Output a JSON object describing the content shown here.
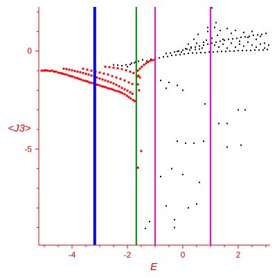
{
  "chart_data": {
    "type": "scatter",
    "title": "",
    "xlabel": "E",
    "ylabel": "<J3>",
    "xlim": [
      -5.2,
      3.15
    ],
    "ylim": [
      -9.9,
      2.25
    ],
    "x_ticks": [
      -4,
      -2,
      0,
      2
    ],
    "y_ticks": [
      0,
      -5
    ],
    "x_tick_labels": [
      "-4",
      "-2",
      "0",
      "2"
    ],
    "y_tick_labels": [
      "0",
      "-5"
    ],
    "grid": false,
    "colors": {
      "axis": "#e60000",
      "scatter_red": "#ff0000",
      "scatter_black": "#000000",
      "line_blue": "#0000ff",
      "line_green": "#008000",
      "line_magenta": "#ff00ff"
    },
    "vertical_lines": [
      {
        "x": -3.18,
        "color": "#0000ff",
        "width": 4
      },
      {
        "x": -1.68,
        "color": "#008000",
        "width": 2
      },
      {
        "x": -1.0,
        "color": "#ff00ff",
        "width": 2
      },
      {
        "x": 1.0,
        "color": "#ff00ff",
        "width": 2
      }
    ],
    "series": [
      {
        "color": "#ff0000",
        "points": [
          [
            -5.1,
            -1.0
          ],
          [
            -5.02,
            -1.0
          ],
          [
            -4.95,
            -0.98
          ],
          [
            -4.88,
            -1.0
          ],
          [
            -4.8,
            -1.02
          ],
          [
            -4.72,
            -1.0
          ],
          [
            -4.65,
            -1.05
          ],
          [
            -4.58,
            -1.05
          ],
          [
            -4.5,
            -1.1
          ],
          [
            -4.42,
            -1.12
          ],
          [
            -4.35,
            -1.15
          ],
          [
            -4.28,
            -1.18
          ],
          [
            -4.2,
            -1.2
          ],
          [
            -4.12,
            -1.25
          ],
          [
            -4.05,
            -1.28
          ],
          [
            -3.98,
            -1.3
          ],
          [
            -3.9,
            -1.35
          ],
          [
            -3.82,
            -1.38
          ],
          [
            -3.75,
            -1.42
          ],
          [
            -3.68,
            -1.45
          ],
          [
            -3.6,
            -1.5
          ],
          [
            -3.52,
            -1.52
          ],
          [
            -3.45,
            -1.55
          ],
          [
            -3.38,
            -1.6
          ],
          [
            -3.3,
            -1.62
          ],
          [
            -3.22,
            -1.65
          ],
          [
            -3.15,
            -1.7
          ],
          [
            -3.08,
            -1.72
          ],
          [
            -3.0,
            -1.75
          ],
          [
            -2.92,
            -1.8
          ],
          [
            -2.85,
            -1.82
          ],
          [
            -2.78,
            -1.85
          ],
          [
            -2.7,
            -1.9
          ],
          [
            -2.62,
            -1.92
          ],
          [
            -2.55,
            -1.95
          ],
          [
            -2.48,
            -2.0
          ],
          [
            -2.4,
            -2.03
          ],
          [
            -2.32,
            -2.06
          ],
          [
            -2.25,
            -2.1
          ],
          [
            -2.18,
            -2.15
          ],
          [
            -2.1,
            -2.2
          ],
          [
            -2.02,
            -2.28
          ],
          [
            -1.95,
            -2.35
          ],
          [
            -1.88,
            -2.42
          ],
          [
            -1.8,
            -2.5
          ],
          [
            -1.74,
            -2.55
          ],
          [
            -4.3,
            -0.9
          ],
          [
            -4.2,
            -0.92
          ],
          [
            -4.1,
            -0.95
          ],
          [
            -4.0,
            -0.98
          ],
          [
            -3.9,
            -1.02
          ],
          [
            -3.8,
            -1.05
          ],
          [
            -3.7,
            -1.08
          ],
          [
            -3.6,
            -1.12
          ],
          [
            -3.5,
            -1.16
          ],
          [
            -3.4,
            -1.2
          ],
          [
            -3.3,
            -1.25
          ],
          [
            -3.2,
            -1.3
          ],
          [
            -3.1,
            -1.35
          ],
          [
            -3.0,
            -1.4
          ],
          [
            -2.9,
            -1.45
          ],
          [
            -2.8,
            -1.5
          ],
          [
            -2.7,
            -1.55
          ],
          [
            -2.6,
            -1.6
          ],
          [
            -2.5,
            -1.66
          ],
          [
            -2.4,
            -1.72
          ],
          [
            -2.3,
            -1.8
          ],
          [
            -2.2,
            -1.88
          ],
          [
            -2.1,
            -1.95
          ],
          [
            -2.0,
            -2.02
          ],
          [
            -1.9,
            -2.1
          ],
          [
            -1.82,
            -2.18
          ],
          [
            -3.6,
            -0.9
          ],
          [
            -3.45,
            -0.95
          ],
          [
            -3.3,
            -1.0
          ],
          [
            -3.15,
            -1.05
          ],
          [
            -3.0,
            -1.1
          ],
          [
            -2.85,
            -1.15
          ],
          [
            -2.7,
            -1.2
          ],
          [
            -2.55,
            -1.28
          ],
          [
            -2.4,
            -1.35
          ],
          [
            -2.25,
            -1.42
          ],
          [
            -2.1,
            -1.5
          ],
          [
            -1.95,
            -1.6
          ],
          [
            -1.82,
            -1.68
          ],
          [
            -2.8,
            -0.8
          ],
          [
            -2.65,
            -0.82
          ],
          [
            -2.5,
            -0.85
          ],
          [
            -2.35,
            -0.88
          ],
          [
            -2.2,
            -0.92
          ],
          [
            -2.05,
            -0.98
          ],
          [
            -1.9,
            -1.05
          ],
          [
            -1.78,
            -1.12
          ],
          [
            -1.62,
            -1.0
          ],
          [
            -1.55,
            -0.9
          ],
          [
            -1.48,
            -0.8
          ],
          [
            -1.4,
            -0.7
          ],
          [
            -1.32,
            -0.62
          ],
          [
            -1.25,
            -0.56
          ],
          [
            -1.18,
            -0.5
          ],
          [
            -1.1,
            -0.47
          ],
          [
            -1.02,
            -0.44
          ],
          [
            -1.65,
            -1.3
          ],
          [
            -1.6,
            -1.25
          ],
          [
            -1.55,
            -1.35
          ],
          [
            -1.62,
            -1.7
          ],
          [
            -1.58,
            -2.0
          ],
          [
            -1.5,
            -5.1
          ],
          [
            -1.62,
            -5.95
          ]
        ]
      },
      {
        "color": "#000000",
        "points": [
          [
            -2.5,
            -0.7
          ],
          [
            -2.35,
            -0.72
          ],
          [
            -2.2,
            -0.75
          ],
          [
            -2.05,
            -0.7
          ],
          [
            -1.9,
            -0.68
          ],
          [
            -1.75,
            -0.6
          ],
          [
            -1.6,
            -0.52
          ],
          [
            -1.45,
            -0.45
          ],
          [
            -1.3,
            -0.5
          ],
          [
            -1.15,
            -0.42
          ],
          [
            -1.0,
            -0.38
          ],
          [
            -0.85,
            -0.35
          ],
          [
            -0.7,
            -0.3
          ],
          [
            -0.55,
            -0.28
          ],
          [
            -0.4,
            -0.22
          ],
          [
            -0.25,
            -0.2
          ],
          [
            -0.1,
            -0.18
          ],
          [
            0.05,
            -0.15
          ],
          [
            0.2,
            -0.12
          ],
          [
            0.35,
            -0.1
          ],
          [
            0.5,
            -0.1
          ],
          [
            0.65,
            -0.08
          ],
          [
            0.8,
            -0.08
          ],
          [
            0.95,
            -0.05
          ],
          [
            1.1,
            -0.05
          ],
          [
            1.25,
            -0.03
          ],
          [
            1.4,
            -0.02
          ],
          [
            1.55,
            -0.02
          ],
          [
            1.7,
            0.0
          ],
          [
            1.85,
            0.0
          ],
          [
            2.0,
            0.02
          ],
          [
            2.15,
            0.02
          ],
          [
            2.3,
            0.03
          ],
          [
            2.45,
            0.03
          ],
          [
            2.6,
            0.05
          ],
          [
            2.75,
            0.05
          ],
          [
            2.9,
            0.05
          ],
          [
            3.05,
            0.08
          ],
          [
            -0.6,
            -0.12
          ],
          [
            -0.45,
            -0.1
          ],
          [
            -0.3,
            -0.05
          ],
          [
            -0.15,
            0.0
          ],
          [
            0.0,
            0.05
          ],
          [
            0.15,
            0.1
          ],
          [
            0.3,
            0.15
          ],
          [
            0.45,
            0.2
          ],
          [
            0.6,
            0.25
          ],
          [
            0.75,
            0.3
          ],
          [
            0.9,
            0.35
          ],
          [
            1.05,
            0.4
          ],
          [
            1.2,
            0.45
          ],
          [
            1.35,
            0.5
          ],
          [
            1.5,
            0.55
          ],
          [
            1.65,
            0.6
          ],
          [
            1.8,
            0.62
          ],
          [
            1.95,
            0.65
          ],
          [
            2.1,
            0.7
          ],
          [
            2.25,
            0.72
          ],
          [
            2.4,
            0.75
          ],
          [
            2.55,
            0.8
          ],
          [
            2.7,
            0.82
          ],
          [
            2.85,
            0.85
          ],
          [
            3.0,
            0.9
          ],
          [
            0.2,
            0.35
          ],
          [
            0.4,
            0.6
          ],
          [
            0.55,
            0.85
          ],
          [
            0.75,
            0.45
          ],
          [
            0.9,
            1.0
          ],
          [
            1.05,
            0.65
          ],
          [
            1.15,
            1.2
          ],
          [
            1.25,
            0.8
          ],
          [
            1.35,
            1.05
          ],
          [
            1.45,
            0.6
          ],
          [
            1.6,
            1.15
          ],
          [
            1.75,
            0.9
          ],
          [
            1.9,
            1.05
          ],
          [
            2.05,
            0.5
          ],
          [
            2.2,
            0.95
          ],
          [
            2.35,
            0.7
          ],
          [
            2.5,
            1.0
          ],
          [
            2.65,
            0.6
          ],
          [
            2.8,
            0.75
          ],
          [
            2.95,
            0.4
          ],
          [
            3.1,
            0.3
          ],
          [
            0.3,
            0.2
          ],
          [
            0.5,
            0.4
          ],
          [
            0.7,
            0.15
          ],
          [
            0.85,
            0.55
          ],
          [
            1.0,
            0.25
          ],
          [
            1.15,
            0.3
          ],
          [
            1.3,
            0.2
          ],
          [
            1.45,
            0.35
          ],
          [
            1.6,
            0.15
          ],
          [
            1.75,
            0.4
          ],
          [
            1.9,
            0.2
          ],
          [
            2.05,
            0.35
          ],
          [
            2.2,
            0.25
          ],
          [
            2.35,
            0.45
          ],
          [
            2.5,
            0.3
          ],
          [
            2.65,
            0.2
          ],
          [
            2.8,
            0.35
          ],
          [
            2.95,
            0.15
          ],
          [
            -0.05,
            -0.05
          ],
          [
            -0.2,
            -0.02
          ],
          [
            0.1,
            0.12
          ],
          [
            0.25,
            0.05
          ],
          [
            0.45,
            0.08
          ],
          [
            0.6,
            0.1
          ],
          [
            1.05,
            2.2
          ],
          [
            0.9,
            1.2
          ],
          [
            1.2,
            1.45
          ],
          [
            -2.2,
            -0.75
          ],
          [
            -2.0,
            -0.8
          ],
          [
            -1.85,
            -0.62
          ],
          [
            -1.7,
            -0.55
          ],
          [
            -1.0,
            -1.2
          ],
          [
            -0.8,
            -1.5
          ],
          [
            -0.5,
            -1.6
          ],
          [
            -0.2,
            -1.75
          ],
          [
            0.0,
            -2.0
          ],
          [
            -0.6,
            -1.9
          ],
          [
            0.8,
            -2.7
          ],
          [
            1.0,
            -3.3
          ],
          [
            1.3,
            -3.7
          ],
          [
            1.6,
            -3.7
          ],
          [
            2.0,
            -3.0
          ],
          [
            2.25,
            -3.0
          ],
          [
            -0.2,
            -4.6
          ],
          [
            0.1,
            -4.7
          ],
          [
            0.4,
            -4.7
          ],
          [
            0.75,
            -4.6
          ],
          [
            1.6,
            -4.9
          ],
          [
            2.1,
            -4.8
          ],
          [
            -0.8,
            -6.4
          ],
          [
            -0.4,
            -6.0
          ],
          [
            0.0,
            -6.3
          ],
          [
            0.6,
            -6.7
          ],
          [
            1.0,
            -7.0
          ],
          [
            -1.0,
            -7.6
          ],
          [
            -0.6,
            -7.9
          ],
          [
            -0.3,
            -8.6
          ],
          [
            0.2,
            -8.0
          ],
          [
            0.5,
            -7.8
          ],
          [
            -1.2,
            -8.7
          ],
          [
            -0.3,
            -9.0
          ],
          [
            -1.35,
            -9.05
          ]
        ]
      }
    ]
  }
}
